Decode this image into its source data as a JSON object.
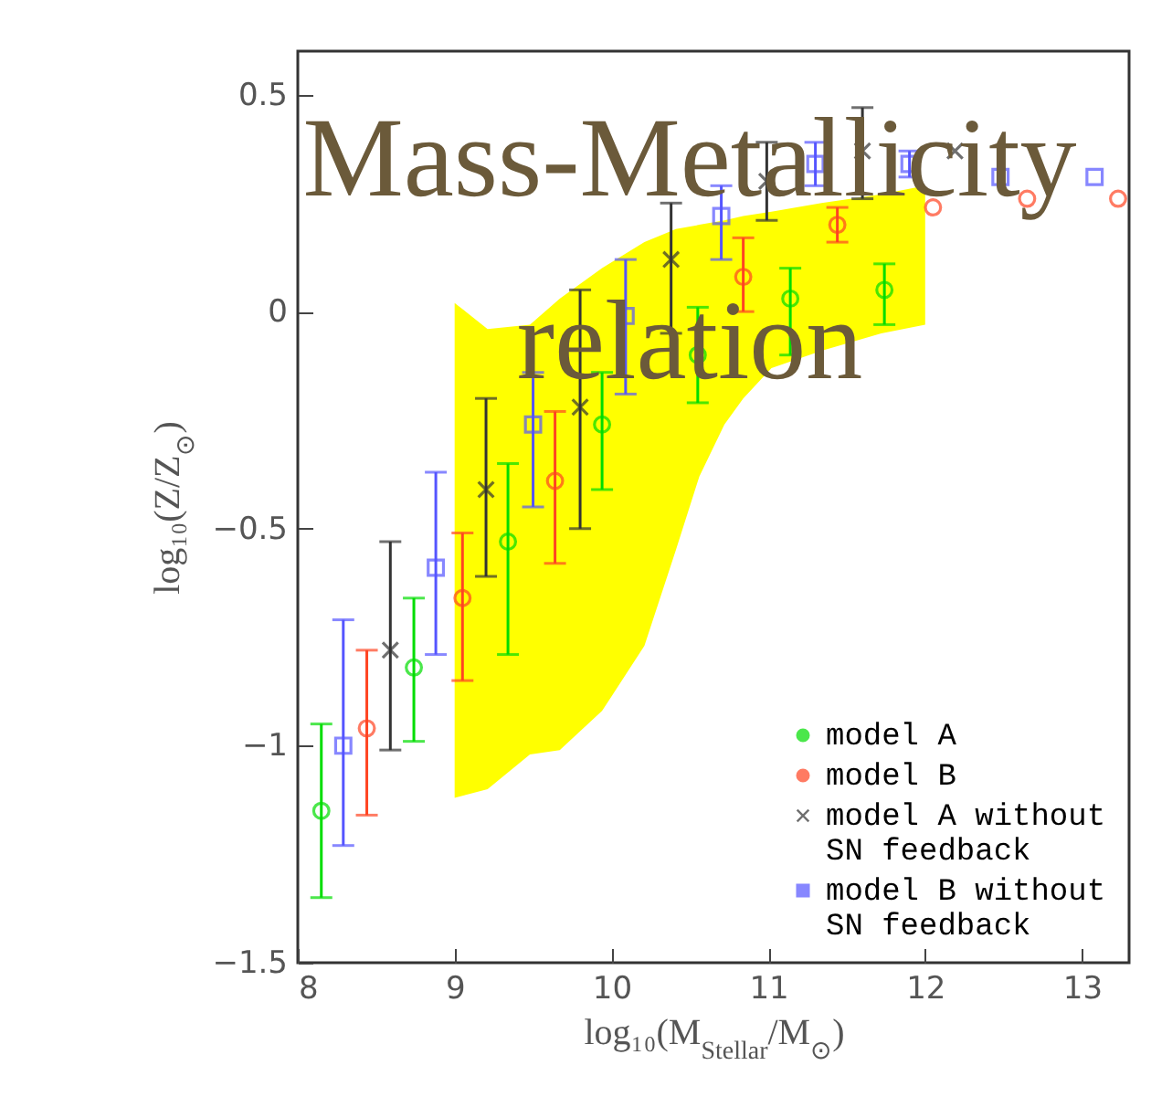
{
  "chart_data": {
    "type": "scatter",
    "title": "Mass-Metallicity relation",
    "xlabel": "log₁₀(M$_{Stellar}$/M$_{⊙}$)",
    "ylabel": "log₁₀(Z/Z$_{⊙}$)",
    "xlim": [
      8,
      13.3
    ],
    "xticks": [
      8,
      9,
      10,
      11,
      12,
      13
    ],
    "ylim": [
      -1.5,
      0.6
    ],
    "yticks": [
      -1.5,
      -1,
      -0.5,
      0,
      0.5
    ],
    "legend": "bottom right",
    "series": [
      {
        "type": "line",
        "color": "#ffff00",
        "x": [
          9,
          9.21,
          9.48,
          9.67,
          9.94,
          10.21,
          10.41,
          10.56,
          10.72,
          10.84,
          11.02,
          11.34,
          11.72,
          12
        ],
        "values": [
          null,
          null,
          null,
          null,
          null,
          null,
          null,
          null,
          null,
          null,
          null,
          null,
          null,
          null
        ],
        "upper": [
          0.02,
          -0.04,
          -0.03,
          0.03,
          0.1,
          0.16,
          0.19,
          0.2,
          0.21,
          0.22,
          0.23,
          0.25,
          0.27,
          0.29
        ],
        "lower": [
          -1.12,
          -1.1,
          -1.02,
          -1.01,
          -0.92,
          -0.77,
          -0.55,
          -0.38,
          -0.26,
          -0.2,
          -0.13,
          -0.09,
          -0.05,
          -0.03
        ]
      },
      {
        "name": "model A",
        "color": "#00dd00",
        "marker": "circle",
        "x": [
          8.15,
          8.74,
          9.34,
          9.94,
          10.55,
          11.14,
          11.74
        ],
        "values": [
          -1.15,
          -0.82,
          -0.53,
          -0.26,
          -0.1,
          0.03,
          0.05
        ],
        "errors": [
          [
            -1.35,
            -0.95
          ],
          [
            -0.99,
            -0.66
          ],
          [
            -0.79,
            -0.35
          ],
          [
            -0.41,
            -0.14
          ],
          [
            -0.21,
            0.01
          ],
          [
            -0.1,
            0.1
          ],
          [
            -0.03,
            0.11
          ]
        ]
      },
      {
        "name": "model B",
        "color": "#ff4422",
        "marker": "circle",
        "x": [
          8.44,
          9.05,
          9.64,
          10.84,
          11.44,
          12.05,
          12.65,
          13.23
        ],
        "values": [
          -0.96,
          -0.66,
          -0.39,
          0.08,
          0.2,
          0.24,
          0.26,
          0.26
        ],
        "errors": [
          [
            -1.16,
            -0.78
          ],
          [
            -0.85,
            -0.51
          ],
          [
            -0.58,
            -0.23
          ],
          [
            0.0,
            0.17
          ],
          [
            0.16,
            0.24
          ],
          null,
          null,
          null
        ]
      },
      {
        "name": "model A without SN feedback",
        "color": "#333333",
        "marker": "cross",
        "x": [
          8.59,
          9.2,
          9.8,
          10.38,
          10.99,
          11.6,
          12.19
        ],
        "values": [
          -0.78,
          -0.41,
          -0.22,
          0.12,
          0.3,
          0.37,
          0.37
        ],
        "errors": [
          [
            -1.01,
            -0.53
          ],
          [
            -0.61,
            -0.2
          ],
          [
            -0.5,
            0.05
          ],
          [
            -0.05,
            0.25
          ],
          [
            0.21,
            0.39
          ],
          [
            0.26,
            0.47
          ],
          null
        ]
      },
      {
        "name": "model B without SN feedback",
        "color": "#5555ff",
        "marker": "square",
        "x": [
          8.29,
          8.88,
          9.5,
          10.09,
          10.7,
          11.3,
          11.9,
          12.48,
          13.08
        ],
        "values": [
          -1.0,
          -0.59,
          -0.26,
          -0.01,
          0.22,
          0.34,
          0.34,
          0.31,
          0.31
        ],
        "errors": [
          [
            -1.23,
            -0.71
          ],
          [
            -0.79,
            -0.37
          ],
          [
            -0.45,
            -0.14
          ],
          [
            -0.19,
            0.12
          ],
          [
            0.12,
            0.29
          ],
          [
            0.29,
            0.39
          ],
          [
            0.31,
            0.37
          ],
          null,
          null
        ]
      }
    ]
  }
}
